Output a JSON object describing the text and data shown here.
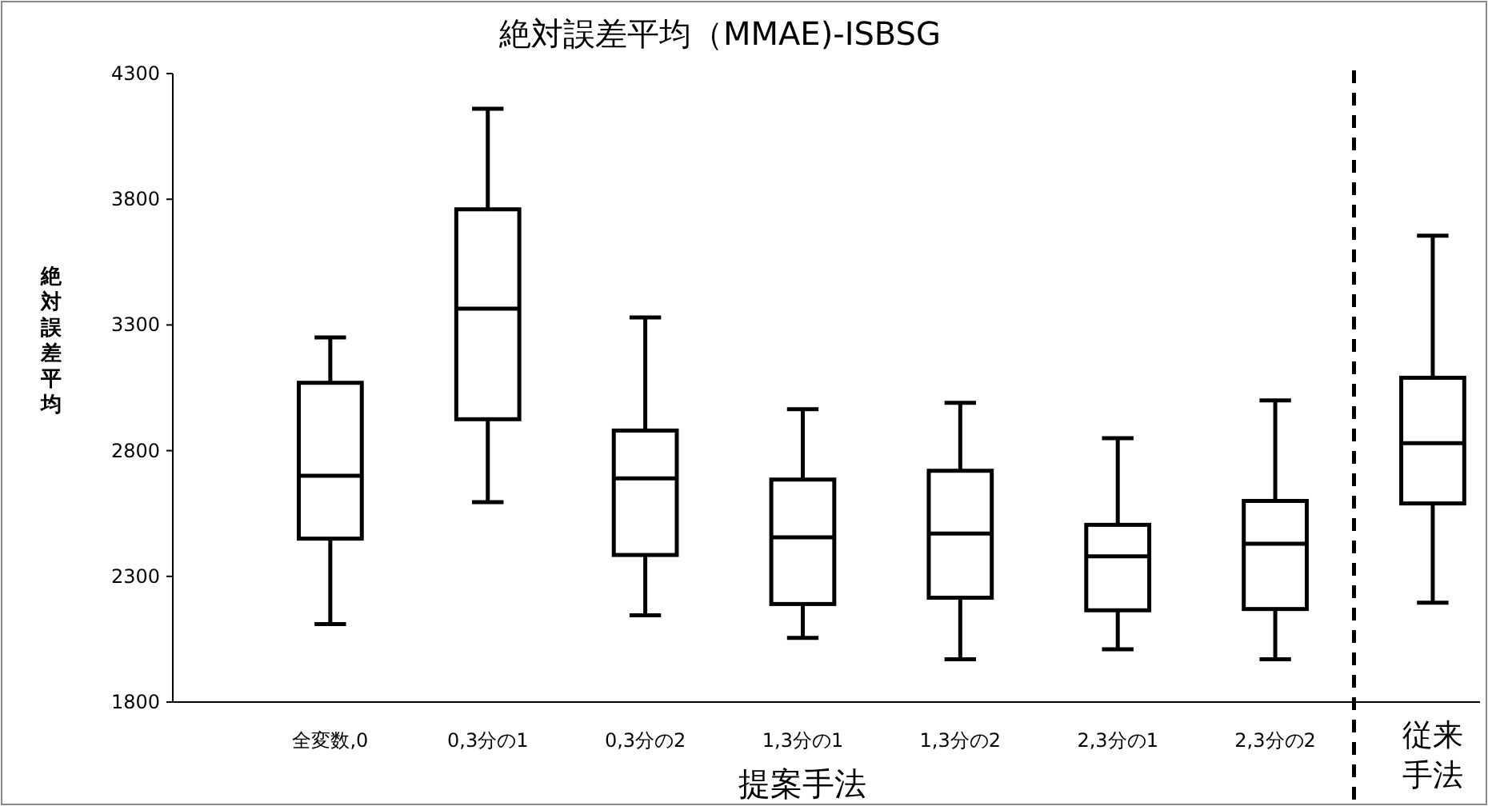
{
  "chart_data": {
    "type": "box",
    "title": "絶対誤差平均（MMAE)-ISBSG",
    "xlabel": "提案手法",
    "ylabel": "絶対誤差平均",
    "categories": [
      "全変数,0",
      "0,3分の1",
      "0,3分の2",
      "1,3分の1",
      "1,3分の2",
      "2,3分の1",
      "2,3分の2",
      "従来手法"
    ],
    "boxes": [
      {
        "low": 2110,
        "q1": 2450,
        "median": 2700,
        "q3": 3070,
        "high": 3250
      },
      {
        "low": 2595,
        "q1": 2925,
        "median": 3365,
        "q3": 3760,
        "high": 4160
      },
      {
        "low": 2145,
        "q1": 2385,
        "median": 2690,
        "q3": 2880,
        "high": 3330
      },
      {
        "low": 2055,
        "q1": 2190,
        "median": 2455,
        "q3": 2685,
        "high": 2965
      },
      {
        "low": 1970,
        "q1": 2215,
        "median": 2470,
        "q3": 2720,
        "high": 2990
      },
      {
        "low": 2010,
        "q1": 2165,
        "median": 2380,
        "q3": 2505,
        "high": 2850
      },
      {
        "low": 1970,
        "q1": 2170,
        "median": 2430,
        "q3": 2600,
        "high": 3000
      },
      {
        "low": 2195,
        "q1": 2590,
        "median": 2830,
        "q3": 3090,
        "high": 3655
      }
    ],
    "ylim": [
      1800,
      4300
    ],
    "yticks": [
      1800,
      2300,
      2800,
      3300,
      3800,
      4300
    ],
    "grid": false
  }
}
